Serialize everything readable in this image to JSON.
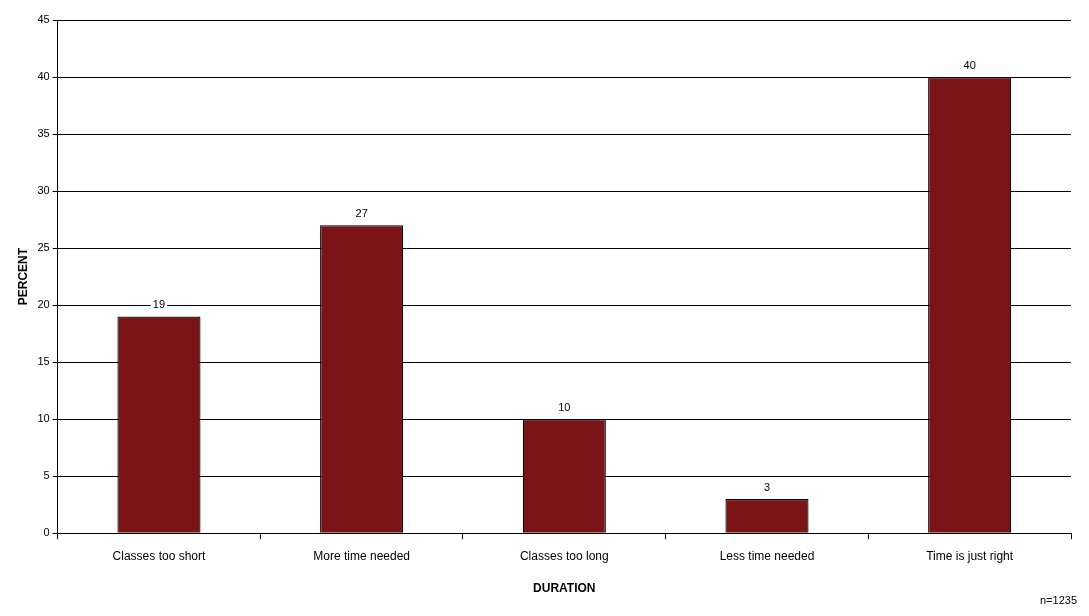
{
  "chart_data": {
    "type": "bar",
    "xlabel": "DURATION",
    "ylabel": "PERCENT",
    "categories": [
      "Classes too short",
      "More time needed",
      "Classes too long",
      "Less time needed",
      "Time is just right"
    ],
    "values": [
      19,
      27,
      10,
      3,
      40
    ],
    "color": "#7b1416",
    "ylim": [
      0,
      45
    ],
    "yticks": [
      0,
      5,
      10,
      15,
      20,
      25,
      30,
      35,
      40,
      45
    ],
    "grid": "y",
    "legend": false,
    "data_labels": true,
    "annotations": [
      "n=1235"
    ]
  }
}
